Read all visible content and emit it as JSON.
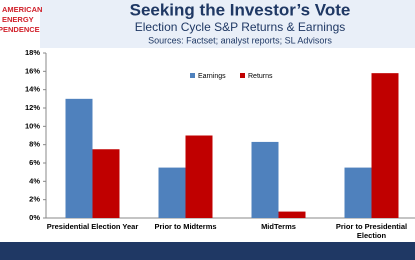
{
  "logo": {
    "lines": [
      "AMERICAN",
      "ENERGY",
      "PENDENCE"
    ]
  },
  "chart_data": {
    "type": "bar",
    "title": "Seeking the Investor’s Vote",
    "subtitle": "Election Cycle S&P Returns & Earnings",
    "source": "Sources: Factset; analyst reports; SL Advisors",
    "categories": [
      "Presidential Election Year",
      "Prior to Midterms",
      "MidTerms",
      "Prior to Presidential Election"
    ],
    "series": [
      {
        "name": "Earnings",
        "color": "#4f81bd",
        "values": [
          13,
          5.5,
          8.3,
          5.5
        ]
      },
      {
        "name": "Returns",
        "color": "#c00000",
        "values": [
          7.5,
          9,
          0.7,
          15.8
        ]
      }
    ],
    "ylim": [
      0,
      18
    ],
    "yticks": [
      {
        "value": 0,
        "label": "0%"
      },
      {
        "value": 2,
        "label": "2%"
      },
      {
        "value": 4,
        "label": "4%"
      },
      {
        "value": 6,
        "label": "6%"
      },
      {
        "value": 8,
        "label": "8%"
      },
      {
        "value": 10,
        "label": "10%"
      },
      {
        "value": 12,
        "label": "12%"
      },
      {
        "value": 14,
        "label": "14%"
      },
      {
        "value": 16,
        "label": "16%"
      },
      {
        "value": 18,
        "label": "18%"
      }
    ],
    "grid": false,
    "legend": "top"
  }
}
